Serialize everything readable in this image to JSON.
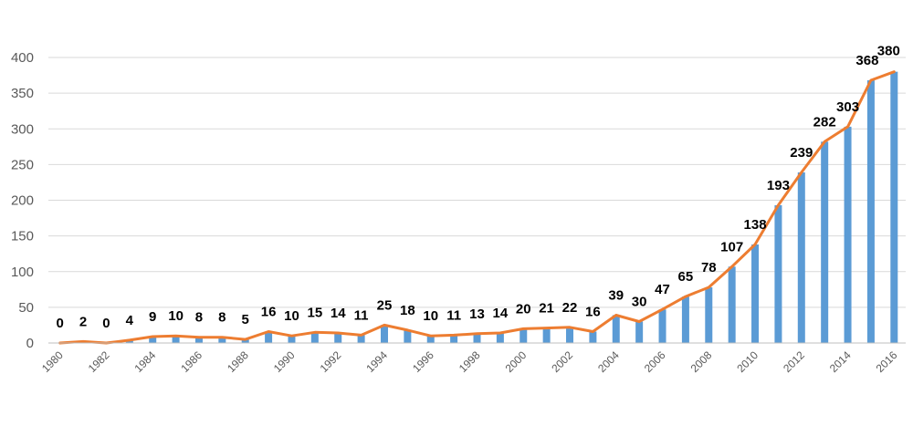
{
  "chart_data": {
    "type": "bar",
    "categories": [
      "1980",
      "1981",
      "1982",
      "1983",
      "1984",
      "1985",
      "1986",
      "1987",
      "1988",
      "1989",
      "1990",
      "1991",
      "1992",
      "1993",
      "1994",
      "1995",
      "1996",
      "1997",
      "1998",
      "1999",
      "2000",
      "2001",
      "2002",
      "2003",
      "2004",
      "2005",
      "2006",
      "2007",
      "2008",
      "2009",
      "2010",
      "2011",
      "2012",
      "2013",
      "2014",
      "2015",
      "2016"
    ],
    "x_tick_labels": [
      "1980",
      "1982",
      "1984",
      "1986",
      "1988",
      "1990",
      "1992",
      "1994",
      "1996",
      "1998",
      "2000",
      "2002",
      "2004",
      "2006",
      "2008",
      "2010",
      "2012",
      "2014",
      "2016"
    ],
    "series": [
      {
        "values": [
          0,
          2,
          0,
          4,
          9,
          10,
          8,
          8,
          5,
          16,
          10,
          15,
          14,
          11,
          25,
          18,
          10,
          11,
          13,
          14,
          20,
          21,
          22,
          16,
          39,
          30,
          47,
          65,
          78,
          107,
          138,
          193,
          239,
          282,
          303,
          368,
          380
        ]
      }
    ],
    "overlay_line": true,
    "ylim": [
      0,
      400
    ],
    "y_ticks": [
      0,
      50,
      100,
      150,
      200,
      250,
      300,
      350,
      400
    ],
    "grid": true,
    "colors": {
      "bar": "#5b9bd5",
      "line": "#ed7d31",
      "grid": "#d9d9d9"
    }
  }
}
